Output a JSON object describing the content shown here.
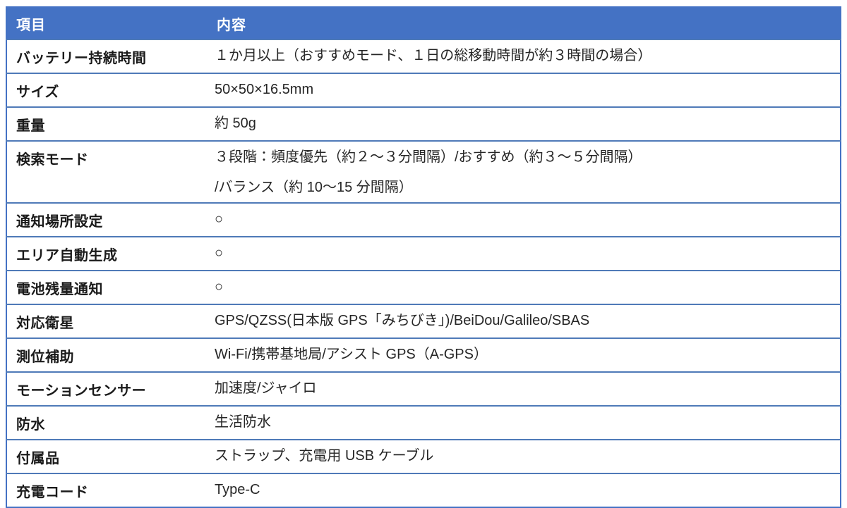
{
  "colors": {
    "header_bg": "#4472C4",
    "header_text": "#FFFFFF",
    "outer_border": "#4472C4",
    "row_divider": "#4F7AB8",
    "body_text": "#262626"
  },
  "table": {
    "columns": [
      {
        "label": "項目"
      },
      {
        "label": "内容"
      }
    ],
    "rows": [
      {
        "item": "バッテリー持続時間",
        "content": [
          "１か月以上（おすすめモード、１日の総移動時間が約３時間の場合）"
        ]
      },
      {
        "item": "サイズ",
        "content": [
          "50×50×16.5mm"
        ]
      },
      {
        "item": "重量",
        "content": [
          "約 50g"
        ]
      },
      {
        "item": "検索モード",
        "content": [
          "３段階：頻度優先（約２～３分間隔）/おすすめ（約３～５分間隔）",
          "/バランス（約 10～15 分間隔）"
        ]
      },
      {
        "item": "通知場所設定",
        "content": [
          "○"
        ]
      },
      {
        "item": "エリア自動生成",
        "content": [
          "○"
        ]
      },
      {
        "item": "電池残量通知",
        "content": [
          "○"
        ]
      },
      {
        "item": "対応衛星",
        "content": [
          "GPS/QZSS(日本版 GPS「みちびき」)/BeiDou/Galileo/SBAS"
        ]
      },
      {
        "item": "測位補助",
        "content": [
          "Wi-Fi/携帯基地局/アシスト GPS（A-GPS）"
        ]
      },
      {
        "item": "モーションセンサー",
        "content": [
          "加速度/ジャイロ"
        ]
      },
      {
        "item": "防水",
        "content": [
          "生活防水"
        ]
      },
      {
        "item": "付属品",
        "content": [
          "ストラップ、充電用 USB ケーブル"
        ]
      },
      {
        "item": "充電コード",
        "content": [
          "Type-C"
        ]
      }
    ]
  }
}
